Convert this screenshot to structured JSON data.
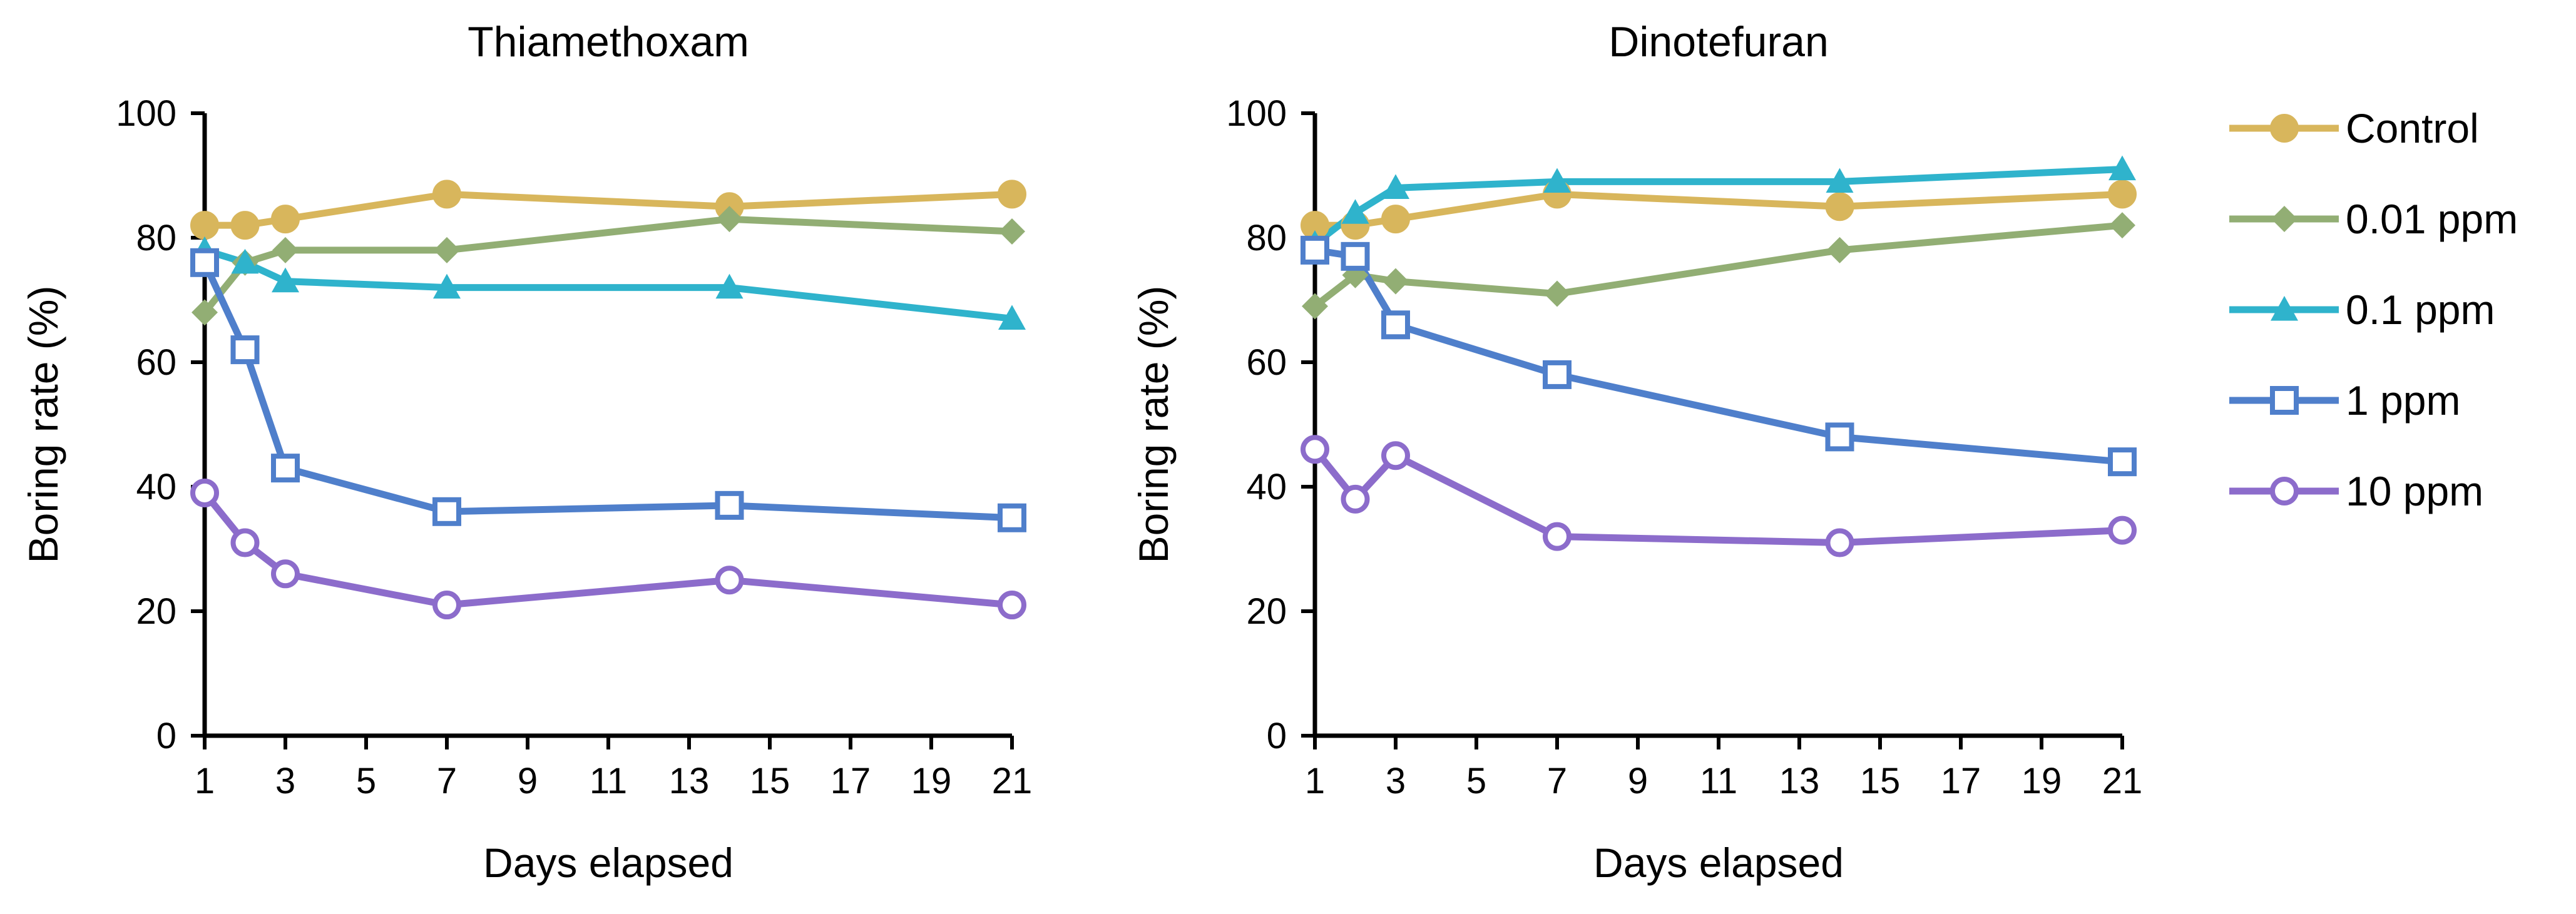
{
  "chart_data": [
    {
      "type": "line",
      "title": "Thiamethoxam",
      "xlabel": "Days elapsed",
      "ylabel": "Boring rate (%)",
      "xlim": [
        1,
        21
      ],
      "ylim": [
        0,
        100
      ],
      "x_ticks": [
        1,
        3,
        5,
        7,
        9,
        11,
        13,
        15,
        17,
        19,
        21
      ],
      "y_ticks": [
        0,
        20,
        40,
        60,
        80,
        100
      ],
      "x_tick_labels": [
        "1",
        "3",
        "5",
        "7",
        "9",
        "11",
        "13",
        "15",
        "17",
        "19",
        "21"
      ],
      "y_tick_labels": [
        "0",
        "20",
        "40",
        "60",
        "80",
        "100"
      ],
      "x": [
        1,
        2,
        3,
        7,
        14,
        21
      ],
      "series": [
        {
          "name": "Control",
          "values": [
            82,
            82,
            83,
            87,
            85,
            87
          ]
        },
        {
          "name": "0.01 ppm",
          "values": [
            68,
            76,
            78,
            78,
            83,
            81
          ]
        },
        {
          "name": "0.1 ppm",
          "values": [
            78,
            76,
            73,
            72,
            72,
            67
          ]
        },
        {
          "name": "1 ppm",
          "values": [
            76,
            62,
            43,
            36,
            37,
            35
          ]
        },
        {
          "name": "10 ppm",
          "values": [
            39,
            31,
            26,
            21,
            25,
            21
          ]
        }
      ]
    },
    {
      "type": "line",
      "title": "Dinotefuran",
      "xlabel": "Days elapsed",
      "ylabel": "Boring rate (%)",
      "xlim": [
        1,
        21
      ],
      "ylim": [
        0,
        100
      ],
      "x_ticks": [
        1,
        3,
        5,
        7,
        9,
        11,
        13,
        15,
        17,
        19,
        21
      ],
      "y_ticks": [
        0,
        20,
        40,
        60,
        80,
        100
      ],
      "x_tick_labels": [
        "1",
        "3",
        "5",
        "7",
        "9",
        "11",
        "13",
        "15",
        "17",
        "19",
        "21"
      ],
      "y_tick_labels": [
        "0",
        "20",
        "40",
        "60",
        "80",
        "100"
      ],
      "x": [
        1,
        2,
        3,
        7,
        14,
        21
      ],
      "series": [
        {
          "name": "Control",
          "values": [
            82,
            82,
            83,
            87,
            85,
            87
          ]
        },
        {
          "name": "0.01 ppm",
          "values": [
            69,
            74,
            73,
            71,
            78,
            82
          ]
        },
        {
          "name": "0.1 ppm",
          "values": [
            79,
            84,
            88,
            89,
            89,
            91
          ]
        },
        {
          "name": "1 ppm",
          "values": [
            78,
            77,
            66,
            58,
            48,
            44
          ]
        },
        {
          "name": "10 ppm",
          "values": [
            46,
            38,
            45,
            32,
            31,
            33
          ]
        }
      ]
    }
  ],
  "legend": {
    "position": "right",
    "entries": [
      "Control",
      "0.01 ppm",
      "0.1 ppm",
      "1 ppm",
      "10 ppm"
    ]
  },
  "series_style": [
    {
      "name": "Control",
      "color": "#D8B65C",
      "marker": "circle-filled"
    },
    {
      "name": "0.01 ppm",
      "color": "#92AE74",
      "marker": "diamond-filled"
    },
    {
      "name": "0.1 ppm",
      "color": "#2FB3CC",
      "marker": "triangle-filled"
    },
    {
      "name": "1 ppm",
      "color": "#4F7FCB",
      "marker": "square-open"
    },
    {
      "name": "10 ppm",
      "color": "#8C6CCB",
      "marker": "circle-open"
    }
  ]
}
